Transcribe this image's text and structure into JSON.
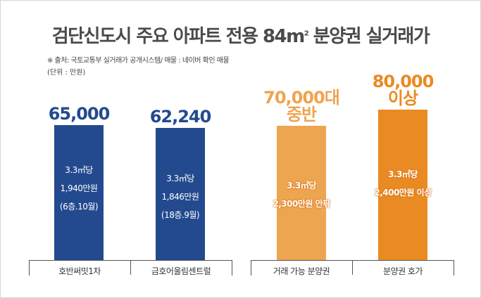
{
  "chart_data": {
    "type": "bar",
    "title": "검단신도시 주요 아파트 전용 84㎡ 분양권 실거래가",
    "source": "※ 출처: 국토교통부 실거래가 공개시스템/ 매물 : 네이버 확인 매물",
    "unit": "(단위 : 만원)",
    "categories": [
      "호반써밋1차",
      "금호어울림센트럴",
      "거래 가능 분양권",
      "분양권 호가"
    ],
    "values": [
      65000,
      62240,
      75000,
      80000
    ],
    "value_labels": [
      "65,000",
      "62,240",
      "70,000대 중반",
      "80,000 이상"
    ],
    "value_label_lines": [
      [
        "65,000"
      ],
      [
        "62,240"
      ],
      [
        "70,000대",
        "중반"
      ],
      [
        "80,000",
        "이상"
      ]
    ],
    "bar_notes": [
      [
        "3.3㎡당",
        "1,940만원",
        "(6층.10월)"
      ],
      [
        "3.3㎡당",
        "1,846만원",
        "(18층.9월)"
      ],
      [
        "3.3㎡당",
        "2,300만원 안팎"
      ],
      [
        "3.3㎡당",
        "2,400만원 이상"
      ]
    ],
    "colors": [
      "#234a8e",
      "#234a8e",
      "#eea54f",
      "#ea8a22"
    ],
    "label_colors": [
      "#234a8e",
      "#234a8e",
      "#eea54f",
      "#ea8a22"
    ],
    "grid": false,
    "legend": "none"
  }
}
